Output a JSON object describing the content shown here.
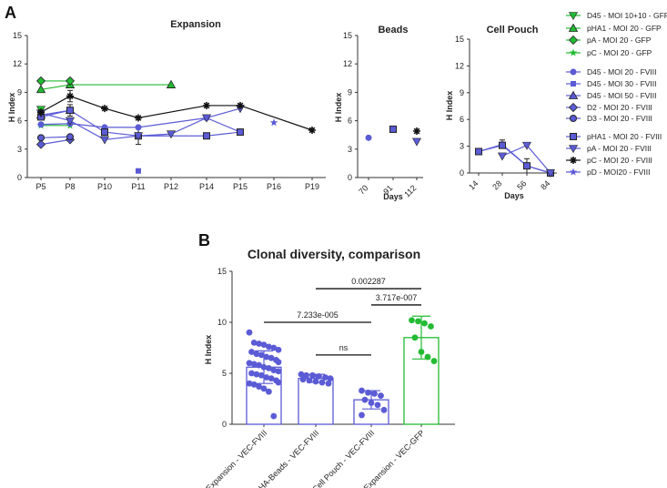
{
  "panel_a_label": "A",
  "panel_b_label": "B",
  "colors": {
    "blue": "#5b5bd6",
    "green": "#22bb33",
    "black": "#111111"
  },
  "chart_data": [
    {
      "id": "expansion",
      "type": "line",
      "title": "Expansion",
      "ylabel": "H Index",
      "ylim": [
        0,
        15
      ],
      "yticks": [
        0,
        3,
        6,
        9,
        12,
        15
      ],
      "categories": [
        "P5",
        "P8",
        "P10",
        "P11",
        "P12",
        "P14",
        "P15",
        "P16",
        "P19"
      ],
      "series": [
        {
          "name": "D45 - MOI 10+10 - GFP",
          "color": "#22bb33",
          "marker": "tri-down",
          "points": [
            [
              0,
              7.2
            ]
          ]
        },
        {
          "name": "pHA1 - MOI 20 - GFP",
          "color": "#22bb33",
          "marker": "tri-up",
          "points": [
            [
              0,
              9.3
            ],
            [
              1,
              9.8
            ],
            [
              4,
              9.8
            ]
          ]
        },
        {
          "name": "pA - MOI 20 - GFP",
          "color": "#22bb33",
          "marker": "diamond",
          "points": [
            [
              0,
              10.2
            ],
            [
              1,
              10.2
            ]
          ]
        },
        {
          "name": "pC - MOI 20 - GFP",
          "color": "#22bb33",
          "marker": "star",
          "points": [
            [
              0,
              5.5
            ],
            [
              1,
              5.5
            ]
          ]
        },
        {
          "name": "D45 - MOI 20 - FVIII",
          "color": "#5b5bd6",
          "marker": "circle",
          "points": [
            [
              0,
              5.6
            ],
            [
              1,
              5.7
            ],
            [
              2,
              5.3
            ],
            [
              3,
              5.3
            ],
            [
              5,
              6.3
            ],
            [
              6,
              4.8
            ]
          ]
        },
        {
          "name": "D45 - MOI 30 - FVIII",
          "color": "#5b5bd6",
          "marker": "square-small",
          "points": [
            [
              3,
              0.7
            ]
          ]
        },
        {
          "name": "D45 - MOI 50 - FVIII",
          "color": "#5b5bd6",
          "marker": "tri-up",
          "points": [
            [
              0,
              6.6
            ],
            [
              1,
              7.1
            ]
          ]
        },
        {
          "name": "D2 - MOI 20 - FVIII",
          "color": "#5b5bd6",
          "marker": "diamond",
          "points": [
            [
              0,
              3.5
            ],
            [
              1,
              4.0
            ]
          ]
        },
        {
          "name": "D3 - MOI 20 - FVIII",
          "color": "#5b5bd6",
          "marker": "circle-outline",
          "points": [
            [
              0,
              4.2
            ],
            [
              1,
              4.3
            ]
          ]
        },
        {
          "name": "pHA1 - MOI 20 - FVIII",
          "color": "#5b5bd6",
          "marker": "square",
          "points": [
            [
              0,
              6.4
            ],
            [
              1,
              7.1
            ],
            [
              2,
              4.8
            ],
            [
              3,
              4.4
            ],
            [
              5,
              4.4
            ],
            [
              6,
              4.8
            ]
          ]
        },
        {
          "name": "pA - MOI 20 - FVIII",
          "color": "#5b5bd6",
          "marker": "tri-down",
          "points": [
            [
              0,
              6.8
            ],
            [
              1,
              6.0
            ],
            [
              2,
              4.0
            ],
            [
              3,
              4.4
            ],
            [
              4,
              4.6
            ],
            [
              5,
              6.3
            ],
            [
              6,
              7.3
            ]
          ]
        },
        {
          "name": "pC - MOI 20 - FVIII",
          "color": "#111111",
          "marker": "asterisk",
          "points": [
            [
              0,
              6.9
            ],
            [
              1,
              8.6
            ],
            [
              2,
              7.3
            ],
            [
              3,
              6.3
            ],
            [
              5,
              7.6
            ],
            [
              6,
              7.6
            ],
            [
              8,
              5.0
            ]
          ]
        },
        {
          "name": "pD - MOI20 - FVIII",
          "color": "#5b5bd6",
          "marker": "star",
          "points": [
            [
              7,
              5.8
            ]
          ]
        }
      ],
      "errorbars": [
        {
          "x": 1,
          "y": 8.6,
          "err": 0.6
        },
        {
          "x": 1,
          "y": 7.1,
          "err": 0.6
        },
        {
          "x": 3,
          "y": 4.4,
          "err": 0.9
        }
      ]
    },
    {
      "id": "beads",
      "type": "scatter",
      "title": "Beads",
      "ylabel": "H Index",
      "xlabel": "Days",
      "ylim": [
        0,
        15
      ],
      "yticks": [
        0,
        3,
        6,
        9,
        12,
        15
      ],
      "categories": [
        "70",
        "91",
        "112"
      ],
      "points": [
        {
          "x": 0,
          "y": 4.2,
          "color": "#5b5bd6",
          "marker": "circle"
        },
        {
          "x": 1,
          "y": 5.1,
          "color": "#5b5bd6",
          "marker": "square"
        },
        {
          "x": 2,
          "y": 4.9,
          "color": "#111111",
          "marker": "asterisk"
        },
        {
          "x": 2,
          "y": 3.8,
          "color": "#5b5bd6",
          "marker": "tri-down"
        }
      ]
    },
    {
      "id": "cellpouch",
      "type": "line",
      "title": "Cell Pouch",
      "ylabel": "H Index",
      "xlabel": "Days",
      "ylim": [
        0,
        15
      ],
      "yticks": [
        0,
        3,
        6,
        9,
        12,
        15
      ],
      "categories": [
        "14",
        "28",
        "56",
        "84"
      ],
      "series": [
        {
          "name": "D45 - MOI 20 - FVIII",
          "color": "#5b5bd6",
          "marker": "circle",
          "points": [
            [
              0,
              2.4
            ],
            [
              1,
              3.2
            ],
            [
              2,
              0.8
            ],
            [
              3,
              0.0
            ]
          ]
        },
        {
          "name": "pHA1 - MOI 20 - FVIII",
          "color": "#5b5bd6",
          "marker": "square",
          "points": [
            [
              0,
              2.4
            ],
            [
              1,
              3.1
            ],
            [
              2,
              0.8
            ],
            [
              3,
              0.0
            ]
          ]
        },
        {
          "name": "pA - MOI 20 - FVIII",
          "color": "#5b5bd6",
          "marker": "tri-down",
          "points": [
            [
              1,
              1.9
            ],
            [
              2,
              3.1
            ],
            [
              3,
              0.0
            ]
          ]
        }
      ],
      "errorbars": [
        {
          "x": 1,
          "y": 3.2,
          "err": 0.5
        },
        {
          "x": 2,
          "y": 0.8,
          "err": 0.8
        }
      ]
    },
    {
      "id": "clonal-diversity",
      "type": "bar",
      "title": "Clonal diversity, comparison",
      "ylabel": "H Index",
      "ylim": [
        0,
        15
      ],
      "yticks": [
        0,
        5,
        10,
        15
      ],
      "categories": [
        "Expansion - VEC-FVIII",
        "HA-Beads - VEC-FVIII",
        "Cell Pouch - VEC-FVIII",
        "Expansion - VEC-GFP"
      ],
      "bar_colors": [
        "#5b5bd6",
        "#5b5bd6",
        "#5b5bd6",
        "#22bb33"
      ],
      "values": [
        5.6,
        4.5,
        2.4,
        8.5
      ],
      "errors": [
        1.6,
        0.4,
        0.9,
        2.1
      ],
      "points": [
        [
          9.0,
          8.0,
          7.9,
          7.8,
          7.6,
          7.5,
          7.3,
          7.1,
          6.9,
          6.8,
          6.6,
          6.5,
          6.3,
          6.1,
          6.0,
          5.9,
          5.8,
          5.6,
          5.5,
          5.3,
          5.2,
          5.0,
          4.9,
          4.8,
          4.6,
          4.5,
          4.3,
          4.1,
          4.0,
          3.9,
          3.7,
          3.5,
          3.2,
          0.8
        ],
        [
          4.9,
          4.8,
          4.8,
          4.7,
          4.6,
          4.5,
          4.4,
          4.3,
          4.2,
          4.1,
          4.0
        ],
        [
          3.3,
          3.1,
          3.0,
          2.8,
          2.4,
          2.1,
          1.9,
          1.4,
          0.9
        ],
        [
          10.2,
          10.1,
          9.9,
          9.6,
          8.5,
          7.1,
          6.6,
          6.2
        ]
      ],
      "comparisons": [
        {
          "from": 0,
          "to": 2,
          "y": 10.0,
          "label": "7.233e-005"
        },
        {
          "from": 1,
          "to": 2,
          "y": 6.8,
          "label": "ns"
        },
        {
          "from": 1,
          "to": 3,
          "y": 13.3,
          "label": "0.002287"
        },
        {
          "from": 2,
          "to": 3,
          "y": 11.7,
          "label": "3.717e-007"
        }
      ]
    }
  ]
}
